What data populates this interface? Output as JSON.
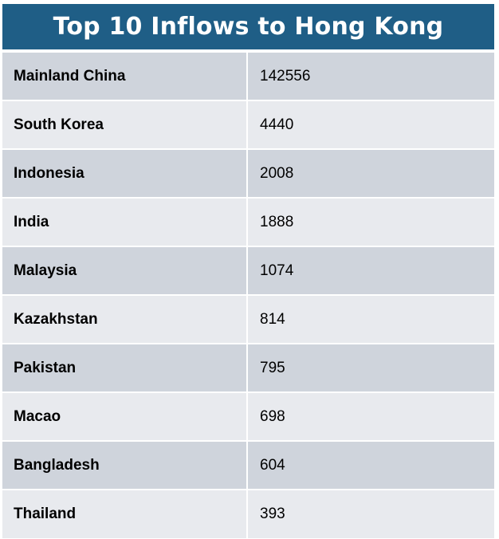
{
  "chart_data": {
    "type": "table",
    "title": "Top 10 Inflows to Hong Kong",
    "rows": [
      {
        "name": "Mainland China",
        "value": 142556
      },
      {
        "name": "South Korea",
        "value": 4440
      },
      {
        "name": "Indonesia",
        "value": 2008
      },
      {
        "name": "India",
        "value": 1888
      },
      {
        "name": "Malaysia",
        "value": 1074
      },
      {
        "name": "Kazakhstan",
        "value": 814
      },
      {
        "name": "Pakistan",
        "value": 795
      },
      {
        "name": "Macao",
        "value": 698
      },
      {
        "name": "Bangladesh",
        "value": 604
      },
      {
        "name": "Thailand",
        "value": 393
      }
    ]
  },
  "colors": {
    "header_bg": "#1f5e86",
    "row_dark": "#cfd4dc",
    "row_light": "#e8eaee"
  }
}
